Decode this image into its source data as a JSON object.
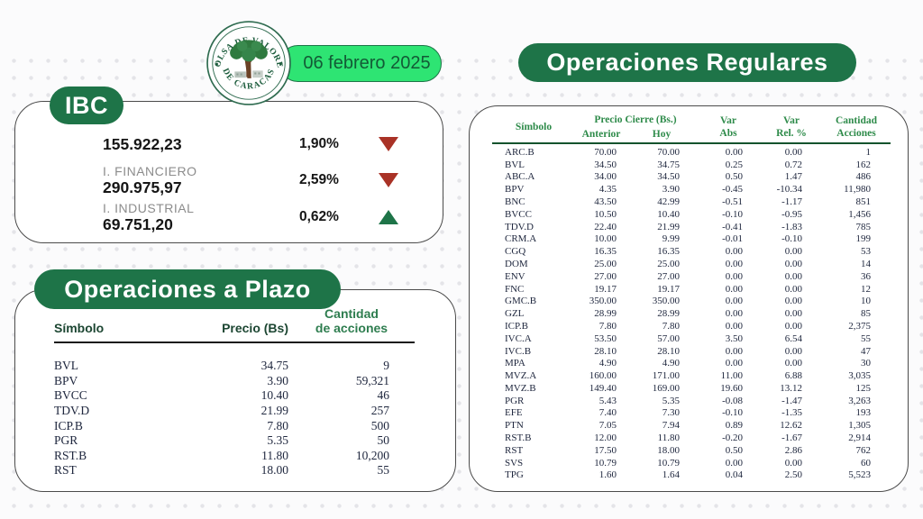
{
  "header": {
    "date_badge": "06 febrero 2025",
    "logo": {
      "top_text": "BOLSA DE VALORES",
      "bottom_text": "DE CARACAS"
    }
  },
  "ibc": {
    "badge": "IBC",
    "items": [
      {
        "label": "",
        "value": "155.922,23",
        "pct": "1,90%",
        "direction": "down"
      },
      {
        "label": "I. FINANCIERO",
        "value": "290.975,97",
        "pct": "2,59%",
        "direction": "down"
      },
      {
        "label": "I. INDUSTRIAL",
        "value": "69.751,20",
        "pct": "0,62%",
        "direction": "up"
      }
    ]
  },
  "plazo": {
    "title": "Operaciones a Plazo",
    "headers": {
      "symbol": "Símbolo",
      "price": "Precio (Bs)",
      "quantity": "Cantidad\nde acciones"
    },
    "rows": [
      [
        "BVL",
        "34.75",
        "9"
      ],
      [
        "BPV",
        "3.90",
        "59,321"
      ],
      [
        "BVCC",
        "10.40",
        "46"
      ],
      [
        "TDV.D",
        "21.99",
        "257"
      ],
      [
        "ICP.B",
        "7.80",
        "500"
      ],
      [
        "PGR",
        "5.35",
        "50"
      ],
      [
        "RST.B",
        "11.80",
        "10,200"
      ],
      [
        "RST",
        "18.00",
        "55"
      ]
    ]
  },
  "regulares": {
    "title": "Operaciones Regulares",
    "headers": {
      "symbol": "Símbolo",
      "price_group": "Precio Cierre (Bs.)",
      "previous": "Anterior",
      "today": "Hoy",
      "var_abs": "Var\nAbs",
      "var_rel": "Var\nRel. %",
      "quantity": "Cantidad\nAcciones"
    },
    "rows": [
      [
        "ARC.B",
        "70.00",
        "70.00",
        "0.00",
        "0.00",
        "1"
      ],
      [
        "BVL",
        "34.50",
        "34.75",
        "0.25",
        "0.72",
        "162"
      ],
      [
        "ABC.A",
        "34.00",
        "34.50",
        "0.50",
        "1.47",
        "486"
      ],
      [
        "BPV",
        "4.35",
        "3.90",
        "-0.45",
        "-10.34",
        "11,980"
      ],
      [
        "BNC",
        "43.50",
        "42.99",
        "-0.51",
        "-1.17",
        "851"
      ],
      [
        "BVCC",
        "10.50",
        "10.40",
        "-0.10",
        "-0.95",
        "1,456"
      ],
      [
        "TDV.D",
        "22.40",
        "21.99",
        "-0.41",
        "-1.83",
        "785"
      ],
      [
        "CRM.A",
        "10.00",
        "9.99",
        "-0.01",
        "-0.10",
        "199"
      ],
      [
        "CGQ",
        "16.35",
        "16.35",
        "0.00",
        "0.00",
        "53"
      ],
      [
        "DOM",
        "25.00",
        "25.00",
        "0.00",
        "0.00",
        "14"
      ],
      [
        "ENV",
        "27.00",
        "27.00",
        "0.00",
        "0.00",
        "36"
      ],
      [
        "FNC",
        "19.17",
        "19.17",
        "0.00",
        "0.00",
        "12"
      ],
      [
        "GMC.B",
        "350.00",
        "350.00",
        "0.00",
        "0.00",
        "10"
      ],
      [
        "GZL",
        "28.99",
        "28.99",
        "0.00",
        "0.00",
        "85"
      ],
      [
        "ICP.B",
        "7.80",
        "7.80",
        "0.00",
        "0.00",
        "2,375"
      ],
      [
        "IVC.A",
        "53.50",
        "57.00",
        "3.50",
        "6.54",
        "55"
      ],
      [
        "IVC.B",
        "28.10",
        "28.10",
        "0.00",
        "0.00",
        "47"
      ],
      [
        "MPA",
        "4.90",
        "4.90",
        "0.00",
        "0.00",
        "30"
      ],
      [
        "MVZ.A",
        "160.00",
        "171.00",
        "11.00",
        "6.88",
        "3,035"
      ],
      [
        "MVZ.B",
        "149.40",
        "169.00",
        "19.60",
        "13.12",
        "125"
      ],
      [
        "PGR",
        "5.43",
        "5.35",
        "-0.08",
        "-1.47",
        "3,263"
      ],
      [
        "EFE",
        "7.40",
        "7.30",
        "-0.10",
        "-1.35",
        "193"
      ],
      [
        "PTN",
        "7.05",
        "7.94",
        "0.89",
        "12.62",
        "1,305"
      ],
      [
        "RST.B",
        "12.00",
        "11.80",
        "-0.20",
        "-1.67",
        "2,914"
      ],
      [
        "RST",
        "17.50",
        "18.00",
        "0.50",
        "2.86",
        "762"
      ],
      [
        "SVS",
        "10.79",
        "10.79",
        "0.00",
        "0.00",
        "60"
      ],
      [
        "TPG",
        "1.60",
        "1.64",
        "0.04",
        "2.50",
        "5,523"
      ]
    ]
  },
  "colors": {
    "dark_green": "#1E7448",
    "bright_green": "#2EE473",
    "table_header_green": "#2E8B4A",
    "down_red": "#A93226",
    "up_green": "#1E7448"
  }
}
